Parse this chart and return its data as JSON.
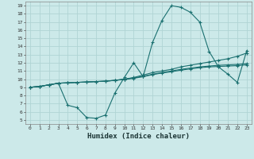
{
  "xlabel": "Humidex (Indice chaleur)",
  "background_color": "#cce9e9",
  "grid_color": "#b0d4d4",
  "line_color": "#1a7070",
  "xlim": [
    -0.5,
    23.5
  ],
  "ylim": [
    4.5,
    19.5
  ],
  "xticks": [
    0,
    1,
    2,
    3,
    4,
    5,
    6,
    7,
    8,
    9,
    10,
    11,
    12,
    13,
    14,
    15,
    16,
    17,
    18,
    19,
    20,
    21,
    22,
    23
  ],
  "yticks": [
    5,
    6,
    7,
    8,
    9,
    10,
    11,
    12,
    13,
    14,
    15,
    16,
    17,
    18,
    19
  ],
  "line1_x": [
    0,
    1,
    2,
    3,
    4,
    5,
    6,
    7,
    8,
    9,
    10,
    11,
    12,
    13,
    14,
    15,
    16,
    17,
    18,
    19,
    20,
    21,
    22,
    23
  ],
  "line1_y": [
    9.0,
    9.1,
    9.3,
    9.5,
    6.8,
    6.5,
    5.3,
    5.2,
    5.6,
    8.3,
    10.2,
    12.0,
    10.3,
    14.5,
    17.2,
    19.0,
    18.8,
    18.2,
    17.0,
    13.4,
    11.5,
    10.6,
    9.6,
    13.5
  ],
  "line2_x": [
    0,
    1,
    2,
    3,
    4,
    5,
    6,
    7,
    8,
    9,
    10,
    11,
    12,
    13,
    14,
    15,
    16,
    17,
    18,
    19,
    20,
    21,
    22,
    23
  ],
  "line2_y": [
    9.0,
    9.1,
    9.3,
    9.5,
    9.55,
    9.6,
    9.65,
    9.7,
    9.75,
    9.85,
    10.0,
    10.2,
    10.5,
    10.8,
    11.0,
    11.2,
    11.5,
    11.7,
    11.9,
    12.1,
    12.3,
    12.5,
    12.8,
    13.2
  ],
  "line3_x": [
    0,
    1,
    2,
    3,
    4,
    5,
    6,
    7,
    8,
    9,
    10,
    11,
    12,
    13,
    14,
    15,
    16,
    17,
    18,
    19,
    20,
    21,
    22,
    23
  ],
  "line3_y": [
    9.0,
    9.1,
    9.3,
    9.5,
    9.55,
    9.6,
    9.65,
    9.7,
    9.75,
    9.85,
    10.0,
    10.15,
    10.35,
    10.6,
    10.8,
    11.0,
    11.2,
    11.35,
    11.5,
    11.6,
    11.7,
    11.75,
    11.8,
    11.9
  ],
  "line4_x": [
    0,
    1,
    2,
    3,
    4,
    5,
    6,
    7,
    8,
    9,
    10,
    11,
    12,
    13,
    14,
    15,
    16,
    17,
    18,
    19,
    20,
    21,
    22,
    23
  ],
  "line4_y": [
    9.0,
    9.1,
    9.3,
    9.5,
    9.55,
    9.6,
    9.65,
    9.7,
    9.75,
    9.85,
    9.95,
    10.1,
    10.3,
    10.55,
    10.75,
    10.9,
    11.1,
    11.25,
    11.4,
    11.5,
    11.55,
    11.6,
    11.65,
    11.75
  ]
}
